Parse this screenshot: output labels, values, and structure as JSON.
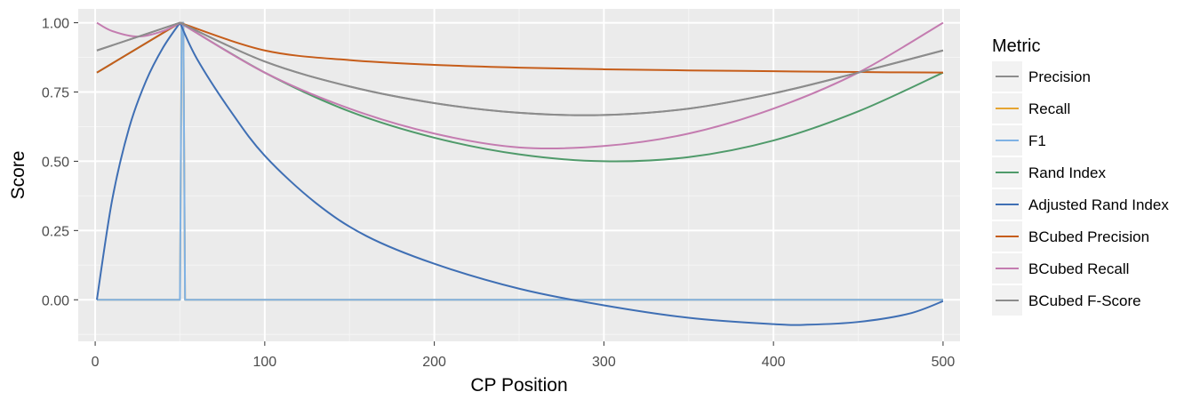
{
  "chart_data": {
    "type": "line",
    "title": "",
    "xlabel": "CP Position",
    "ylabel": "Score",
    "xlim": [
      -10,
      510
    ],
    "ylim": [
      -0.15,
      1.05
    ],
    "x_ticks": [
      0,
      100,
      200,
      300,
      400,
      500
    ],
    "x_tick_labels": [
      "0",
      "100",
      "200",
      "300",
      "400",
      "500"
    ],
    "y_ticks": [
      0.0,
      0.25,
      0.5,
      0.75,
      1.0
    ],
    "y_tick_labels": [
      "0.00",
      "0.25",
      "0.50",
      "0.75",
      "1.00"
    ],
    "grid": true,
    "legend": {
      "title": "Metric",
      "position": "right"
    },
    "series": [
      {
        "name": "Precision",
        "color": "#8c8c8c",
        "x": [
          1,
          50,
          100,
          150,
          200,
          250,
          300,
          350,
          400,
          450,
          500
        ],
        "y": [
          0.9,
          1.0,
          0.86,
          0.77,
          0.71,
          0.675,
          0.667,
          0.69,
          0.745,
          0.82,
          0.9
        ]
      },
      {
        "name": "Recall",
        "color": "#e6a532",
        "x": [
          1,
          50,
          51,
          52,
          53,
          500
        ],
        "y": [
          0.0,
          0.0,
          1.0,
          1.0,
          0.0,
          0.0
        ]
      },
      {
        "name": "F1",
        "color": "#7fb2e5",
        "x": [
          1,
          50,
          51,
          52,
          53,
          500
        ],
        "y": [
          0.0,
          0.0,
          1.0,
          1.0,
          0.0,
          0.0
        ]
      },
      {
        "name": "Rand Index",
        "color": "#4f9a6a",
        "x": [
          1,
          50,
          100,
          150,
          200,
          250,
          300,
          350,
          400,
          450,
          500
        ],
        "y": [
          0.82,
          1.0,
          0.82,
          0.68,
          0.585,
          0.525,
          0.5,
          0.515,
          0.575,
          0.68,
          0.82
        ]
      },
      {
        "name": "Adjusted Rand Index",
        "color": "#3f6fb4",
        "x": [
          1,
          10,
          20,
          30,
          40,
          50,
          60,
          80,
          100,
          130,
          160,
          200,
          250,
          300,
          350,
          400,
          420,
          450,
          480,
          500
        ],
        "y": [
          0.0,
          0.36,
          0.62,
          0.79,
          0.91,
          1.0,
          0.87,
          0.68,
          0.52,
          0.35,
          0.23,
          0.13,
          0.04,
          -0.02,
          -0.065,
          -0.088,
          -0.09,
          -0.08,
          -0.05,
          -0.005
        ]
      },
      {
        "name": "BCubed Precision",
        "color": "#c65d1a",
        "x": [
          1,
          50,
          100,
          150,
          200,
          250,
          300,
          350,
          400,
          450,
          500
        ],
        "y": [
          0.82,
          1.0,
          0.9,
          0.865,
          0.848,
          0.838,
          0.832,
          0.828,
          0.825,
          0.822,
          0.82
        ]
      },
      {
        "name": "BCubed Recall",
        "color": "#c47cb0",
        "x": [
          1,
          10,
          25,
          40,
          50,
          100,
          150,
          200,
          250,
          300,
          350,
          400,
          450,
          500
        ],
        "y": [
          1.0,
          0.97,
          0.95,
          0.97,
          1.0,
          0.82,
          0.69,
          0.6,
          0.55,
          0.555,
          0.6,
          0.69,
          0.82,
          1.0
        ]
      },
      {
        "name": "BCubed F-Score",
        "color": "#8c8c8c",
        "x": [
          1,
          50,
          100,
          150,
          200,
          250,
          300,
          350,
          400,
          450,
          500
        ],
        "y": [
          0.9,
          1.0,
          0.86,
          0.77,
          0.71,
          0.675,
          0.667,
          0.69,
          0.745,
          0.82,
          0.9
        ]
      }
    ]
  }
}
